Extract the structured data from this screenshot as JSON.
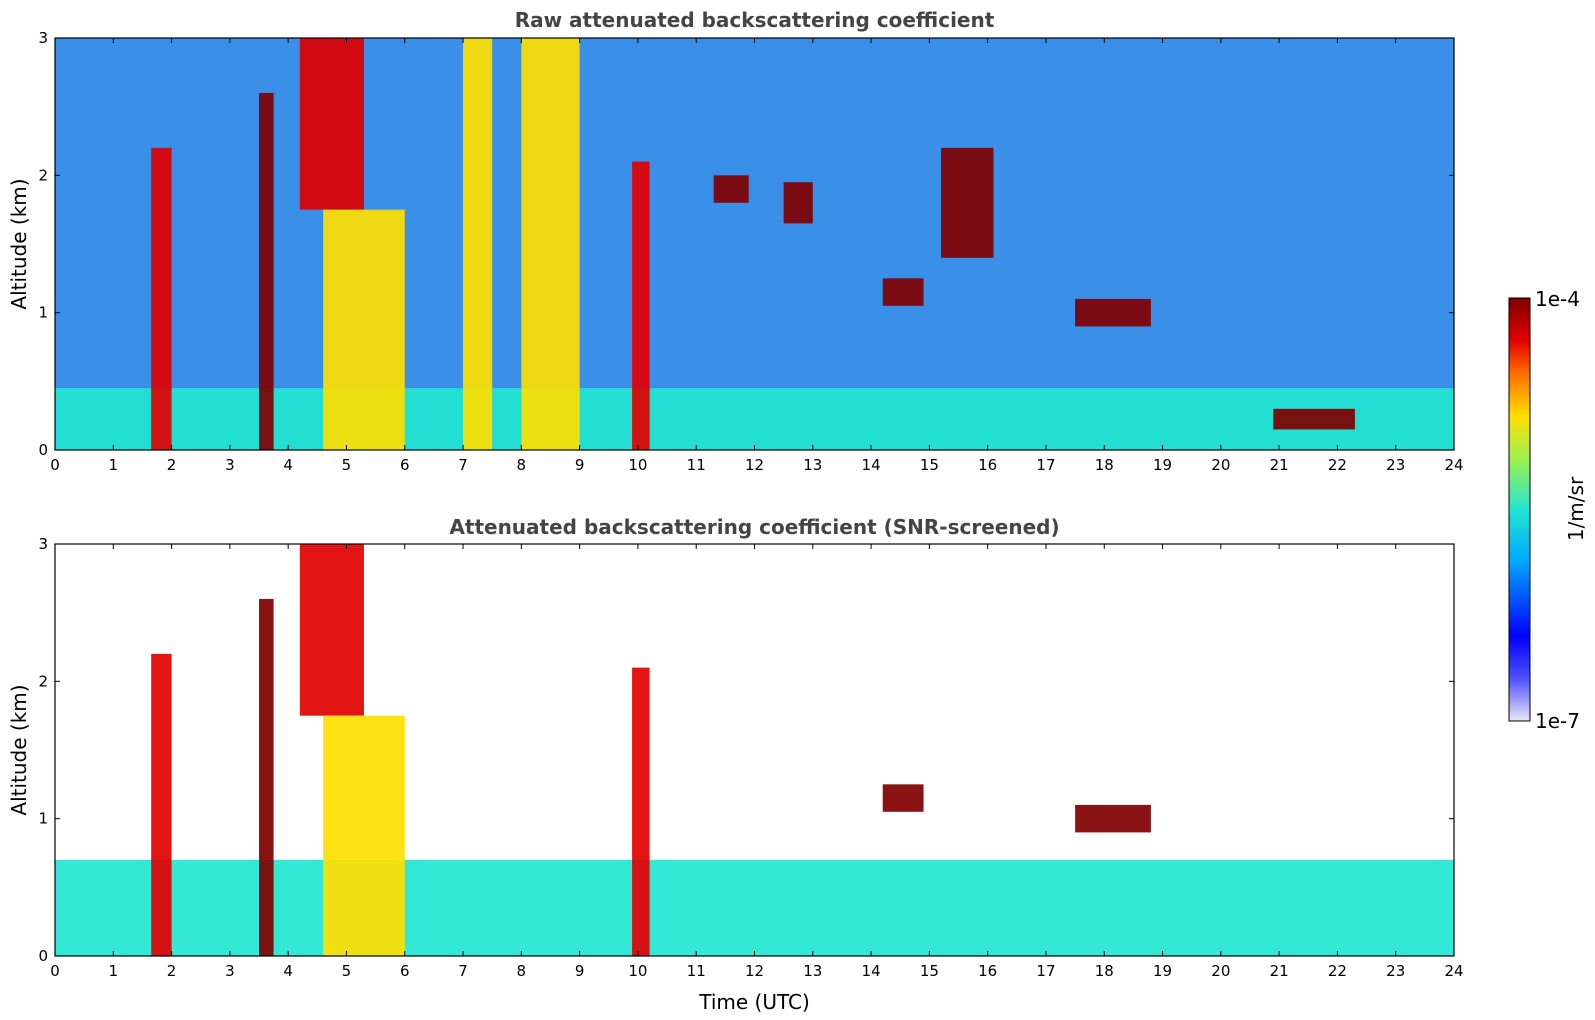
{
  "chart_data": [
    {
      "type": "heatmap",
      "title": "Raw attenuated backscattering coefficient",
      "ylabel": "Altitude (km)",
      "xlabel": "",
      "xlim": [
        0,
        24
      ],
      "ylim": [
        0,
        3
      ],
      "x_ticks": [
        "0",
        "1",
        "2",
        "3",
        "4",
        "5",
        "6",
        "7",
        "8",
        "9",
        "10",
        "11",
        "12",
        "13",
        "14",
        "15",
        "16",
        "17",
        "18",
        "19",
        "20",
        "21",
        "22",
        "23",
        "24"
      ],
      "y_ticks": [
        "0",
        "1",
        "2",
        "3"
      ],
      "features": [
        {
          "time_start": 0.0,
          "time_end": 24.0,
          "alt_bottom": 0.0,
          "alt_top": 0.45,
          "level": 0.3,
          "desc": "boundary layer aerosol"
        },
        {
          "time_start": 1.65,
          "time_end": 2.0,
          "alt_bottom": 0.0,
          "alt_top": 2.2,
          "level": 0.85
        },
        {
          "time_start": 3.5,
          "time_end": 3.75,
          "alt_bottom": 0.0,
          "alt_top": 2.6,
          "level": 0.95
        },
        {
          "time_start": 4.2,
          "time_end": 5.3,
          "alt_bottom": 1.75,
          "alt_top": 3.0,
          "level": 0.75
        },
        {
          "time_start": 4.6,
          "time_end": 6.0,
          "alt_bottom": 0.0,
          "alt_top": 1.75,
          "level": 0.6
        },
        {
          "time_start": 7.0,
          "time_end": 7.5,
          "alt_bottom": 0.0,
          "alt_top": 3.0,
          "level": 0.5
        },
        {
          "time_start": 8.0,
          "time_end": 9.0,
          "alt_bottom": 0.0,
          "alt_top": 3.0,
          "level": 0.55
        },
        {
          "time_start": 9.9,
          "time_end": 10.2,
          "alt_bottom": 0.0,
          "alt_top": 2.1,
          "level": 0.8
        },
        {
          "time_start": 11.3,
          "time_end": 11.9,
          "alt_bottom": 1.8,
          "alt_top": 2.0,
          "level": 0.95
        },
        {
          "time_start": 12.5,
          "time_end": 13.0,
          "alt_bottom": 1.65,
          "alt_top": 1.95,
          "level": 0.95
        },
        {
          "time_start": 14.2,
          "time_end": 14.9,
          "alt_bottom": 1.05,
          "alt_top": 1.25,
          "level": 0.95
        },
        {
          "time_start": 15.2,
          "time_end": 16.1,
          "alt_bottom": 1.4,
          "alt_top": 2.2,
          "level": 0.9
        },
        {
          "time_start": 17.5,
          "time_end": 18.8,
          "alt_bottom": 0.9,
          "alt_top": 1.1,
          "level": 0.95
        },
        {
          "time_start": 20.9,
          "time_end": 22.3,
          "alt_bottom": 0.15,
          "alt_top": 0.3,
          "level": 0.9
        }
      ]
    },
    {
      "type": "heatmap",
      "title": "Attenuated backscattering coefficient (SNR-screened)",
      "ylabel": "Altitude (km)",
      "xlabel": "Time (UTC)",
      "xlim": [
        0,
        24
      ],
      "ylim": [
        0,
        3
      ],
      "x_ticks": [
        "0",
        "1",
        "2",
        "3",
        "4",
        "5",
        "6",
        "7",
        "8",
        "9",
        "10",
        "11",
        "12",
        "13",
        "14",
        "15",
        "16",
        "17",
        "18",
        "19",
        "20",
        "21",
        "22",
        "23",
        "24"
      ],
      "y_ticks": [
        "0",
        "1",
        "2",
        "3"
      ],
      "features": [
        {
          "time_start": 0.0,
          "time_end": 24.0,
          "alt_bottom": 0.0,
          "alt_top": 0.7,
          "level": 0.3,
          "desc": "boundary layer aerosol"
        },
        {
          "time_start": 1.65,
          "time_end": 2.0,
          "alt_bottom": 0.0,
          "alt_top": 2.2,
          "level": 0.85
        },
        {
          "time_start": 3.5,
          "time_end": 3.75,
          "alt_bottom": 0.0,
          "alt_top": 2.6,
          "level": 0.95
        },
        {
          "time_start": 4.2,
          "time_end": 5.3,
          "alt_bottom": 1.75,
          "alt_top": 3.0,
          "level": 0.75
        },
        {
          "time_start": 4.6,
          "time_end": 6.0,
          "alt_bottom": 0.0,
          "alt_top": 1.75,
          "level": 0.6
        },
        {
          "time_start": 9.9,
          "time_end": 10.2,
          "alt_bottom": 0.0,
          "alt_top": 2.1,
          "level": 0.8
        },
        {
          "time_start": 14.2,
          "time_end": 14.9,
          "alt_bottom": 1.05,
          "alt_top": 1.25,
          "level": 1.0
        },
        {
          "time_start": 17.5,
          "time_end": 18.8,
          "alt_bottom": 0.9,
          "alt_top": 1.1,
          "level": 1.0
        }
      ]
    }
  ],
  "colorbar": {
    "label": "1/m/sr",
    "max_label": "1e-4",
    "min_label": "1e-7",
    "colors": [
      "#e8e8f8",
      "#0000ff",
      "#00aaff",
      "#22e6d0",
      "#a0f050",
      "#ffe000",
      "#ff7000",
      "#e00000",
      "#800000"
    ]
  }
}
